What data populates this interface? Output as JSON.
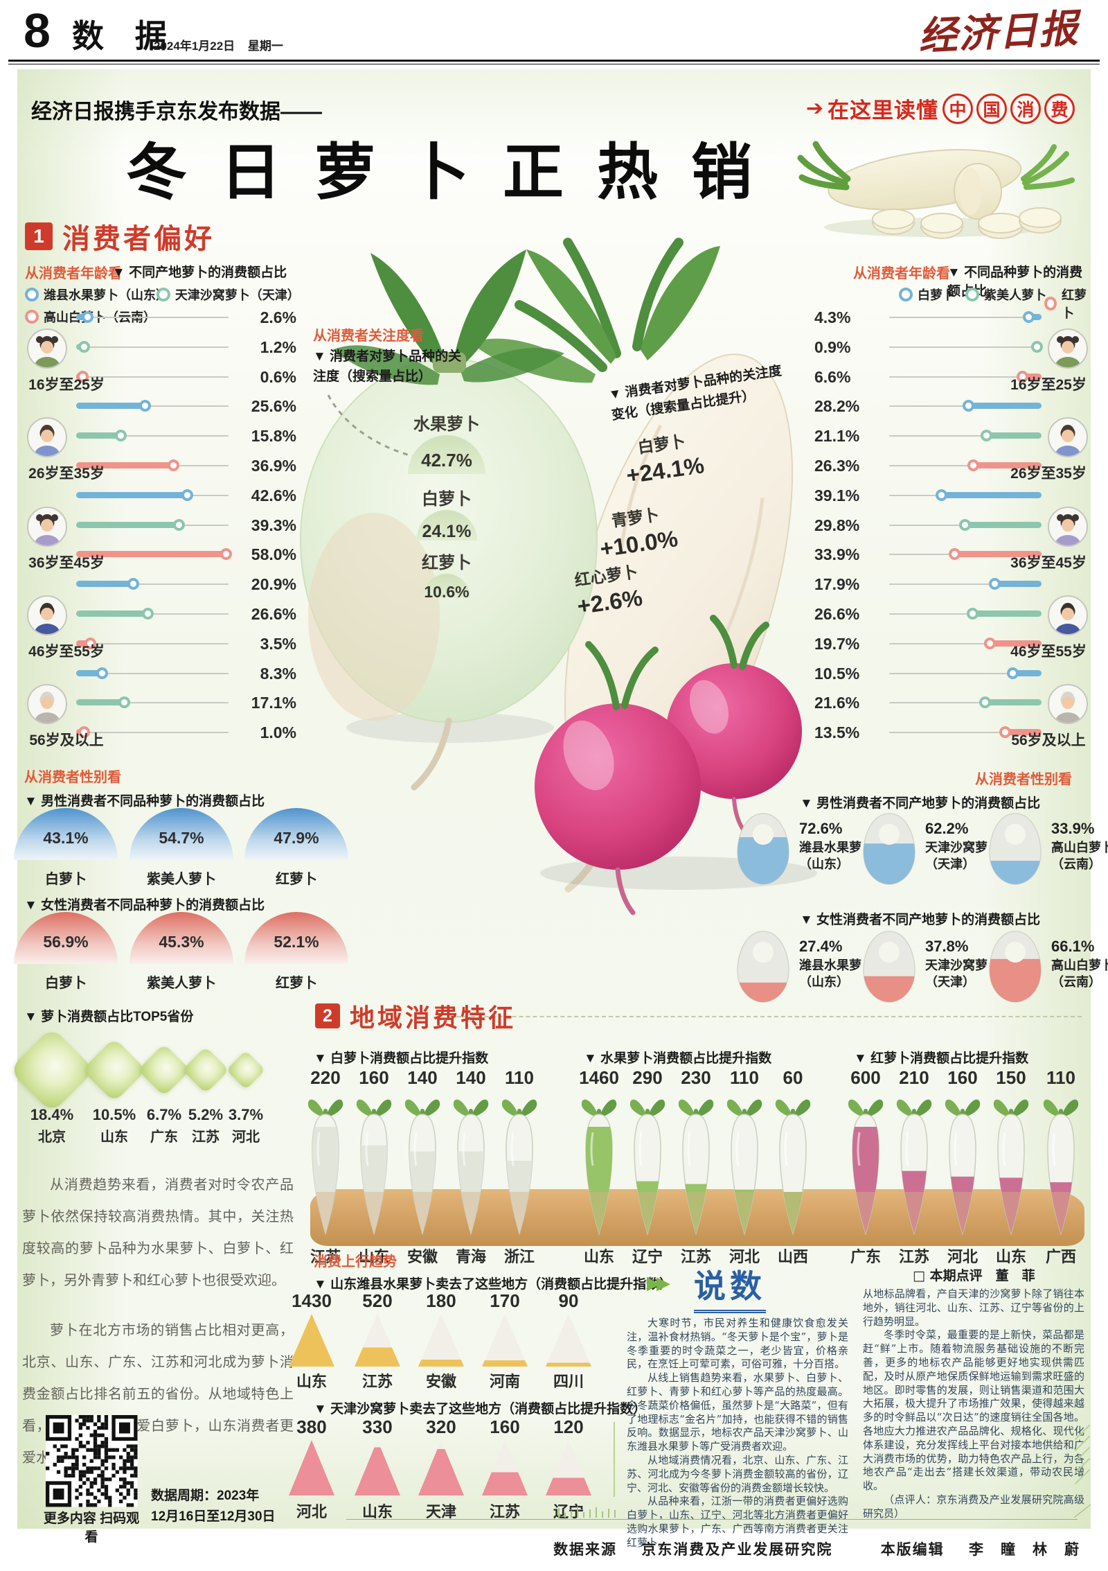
{
  "header": {
    "page_number": "8",
    "section_name": "数 据",
    "date": "2024年1月22日",
    "weekday": "星期一",
    "masthead": "经济日报"
  },
  "intro": {
    "kicker": "经济日报携手京东发布数据——",
    "title": "冬日萝卜正热销",
    "badge_text": "在这里读懂",
    "badge_circles": [
      "中",
      "国",
      "消",
      "费"
    ],
    "accent_red": "#d5281e"
  },
  "sections": {
    "s1_num": "1",
    "s1_title": "消费者偏好",
    "s2_num": "2",
    "s2_title": "地域消费特征"
  },
  "labels": {
    "age_view": "从消费者年龄看",
    "gender_view": "从消费者性别看",
    "attention_view": "从消费者关注度看",
    "uptrend": "消费上行趋势",
    "shuoshu_title": "说数",
    "byline": "□ 本期点评　董　菲"
  },
  "icons": {
    "badge_arrow": "➔",
    "play_arrows": "▶▶"
  },
  "chart_data": [
    {
      "id": "age_origin",
      "type": "bar",
      "view_label": "从消费者年龄看",
      "title": "▼ 不同产地萝卜的消费额占比",
      "unit": "%",
      "categories": [
        "16岁至25岁",
        "26岁至35岁",
        "36岁至45岁",
        "46岁至55岁",
        "56岁及以上"
      ],
      "series": [
        {
          "name": "潍县水果萝卜（山东）",
          "color": "#74b3d8",
          "values": [
            2.6,
            25.6,
            42.6,
            20.9,
            8.3
          ]
        },
        {
          "name": "天津沙窝萝卜（天津）",
          "color": "#8cc6ad",
          "values": [
            1.2,
            15.8,
            39.3,
            26.6,
            17.1
          ]
        },
        {
          "name": "高山白萝卜（云南）",
          "color": "#f0938a",
          "values": [
            0.6,
            36.9,
            58.0,
            3.5,
            1.0
          ]
        }
      ]
    },
    {
      "id": "age_variety",
      "type": "bar",
      "view_label": "从消费者年龄看",
      "title": "▼ 不同品种萝卜的消费额占比",
      "unit": "%",
      "categories": [
        "16岁至25岁",
        "26岁至35岁",
        "36岁至45岁",
        "46岁至55岁",
        "56岁及以上"
      ],
      "series": [
        {
          "name": "白萝卜",
          "color": "#74b3d8",
          "values": [
            4.3,
            28.2,
            39.1,
            17.9,
            10.5
          ]
        },
        {
          "name": "紫美人萝卜",
          "color": "#8cc6ad",
          "values": [
            0.9,
            21.1,
            29.8,
            26.6,
            21.6
          ]
        },
        {
          "name": "红萝卜",
          "color": "#f0938a",
          "values": [
            6.6,
            26.3,
            33.9,
            19.7,
            13.5
          ]
        }
      ]
    },
    {
      "id": "attention_share",
      "type": "pie",
      "view_label": "从消费者关注度看",
      "title": "▼ 消费者对萝卜品种的关注度（搜索量占比）",
      "categories": [
        "水果萝卜",
        "白萝卜",
        "红萝卜"
      ],
      "values": [
        42.7,
        24.1,
        10.6
      ],
      "display": [
        "42.7%",
        "24.1%",
        "10.6%"
      ]
    },
    {
      "id": "attention_change",
      "type": "bar",
      "title": "▼ 消费者对萝卜品种的关注度变化（搜索量占比提升）",
      "categories": [
        "白萝卜",
        "青萝卜",
        "红心萝卜"
      ],
      "values": [
        24.1,
        10.0,
        2.6
      ],
      "display": [
        "+24.1%",
        "+10.0%",
        "+2.6%"
      ]
    },
    {
      "id": "gender_variety",
      "type": "bar",
      "view_label": "从消费者性别看",
      "male_title": "▼ 男性消费者不同品种萝卜的消费额占比",
      "female_title": "▼ 女性消费者不同品种萝卜的消费额占比",
      "categories": [
        "白萝卜",
        "紫美人萝卜",
        "红萝卜"
      ],
      "unit": "%",
      "series": [
        {
          "name": "男性",
          "color": "#5a98cb",
          "values": [
            43.1,
            54.7,
            47.9
          ]
        },
        {
          "name": "女性",
          "color": "#dd6f63",
          "values": [
            56.9,
            45.3,
            52.1
          ]
        }
      ]
    },
    {
      "id": "gender_origin",
      "type": "bar",
      "view_label": "从消费者性别看",
      "male_title": "▼ 男性消费者不同产地萝卜的消费额占比",
      "female_title": "▼ 女性消费者不同产地萝卜的消费额占比",
      "categories": [
        "潍县水果萝卜",
        "天津沙窝萝卜",
        "高山白萝卜"
      ],
      "origins": [
        "（山东）",
        "（天津）",
        "（云南）"
      ],
      "unit": "%",
      "series": [
        {
          "name": "男性",
          "color": "#8cbcdc",
          "values": [
            72.6,
            62.2,
            33.9
          ]
        },
        {
          "name": "女性",
          "color": "#e88f86",
          "values": [
            27.4,
            37.8,
            66.1
          ]
        }
      ]
    },
    {
      "id": "top5",
      "type": "bar",
      "title": "▼ 萝卜消费额占比TOP5省份",
      "categories": [
        "北京",
        "山东",
        "广东",
        "江苏",
        "河北"
      ],
      "values": [
        18.4,
        10.5,
        6.7,
        5.2,
        3.7
      ],
      "display": [
        "18.4%",
        "10.5%",
        "6.7%",
        "5.2%",
        "3.7%"
      ],
      "color": "#c0d87e"
    },
    {
      "id": "white_idx",
      "type": "bar",
      "title": "▼ 白萝卜消费额占比提升指数",
      "categories": [
        "江苏",
        "山东",
        "安徽",
        "青海",
        "浙江"
      ],
      "values": [
        220,
        160,
        140,
        140,
        110
      ],
      "fill": "#dfe3d8"
    },
    {
      "id": "fruit_idx",
      "type": "bar",
      "title": "▼ 水果萝卜消费额占比提升指数",
      "categories": [
        "山东",
        "辽宁",
        "江苏",
        "河北",
        "山西"
      ],
      "values": [
        1460,
        290,
        230,
        110,
        60
      ],
      "fill": "#8fbf5a"
    },
    {
      "id": "red_idx",
      "type": "bar",
      "title": "▼ 红萝卜消费额占比提升指数",
      "categories": [
        "广东",
        "江苏",
        "河北",
        "山东",
        "广西"
      ],
      "values": [
        600,
        210,
        160,
        150,
        110
      ],
      "fill": "#c9648b"
    },
    {
      "id": "weixian_dest",
      "type": "bar",
      "title": "▼ 山东潍县水果萝卜卖去了这些地方（消费额占比提升指数）",
      "categories": [
        "山东",
        "江苏",
        "安徽",
        "河南",
        "四川"
      ],
      "values": [
        1430,
        520,
        180,
        170,
        90
      ],
      "fill": "#eec25a"
    },
    {
      "id": "shawo_dest",
      "type": "bar",
      "title": "▼ 天津沙窝萝卜卖去了这些地方（消费额占比提升指数）",
      "categories": [
        "河北",
        "山东",
        "天津",
        "江苏",
        "辽宁"
      ],
      "values": [
        380,
        330,
        320,
        160,
        120
      ],
      "fill": "#ec8f98"
    }
  ],
  "paragraphs_left": [
    "从消费趋势来看，消费者对时令农产品萝卜依然保持较高消费热情。其中，关注热度较高的萝卜品种为水果萝卜、白萝卜、红萝卜，另外青萝卜和红心萝卜也很受欢迎。",
    "萝卜在北方市场的销售占比相对更高，北京、山东、广东、江苏和河北成为萝卜消费金额占比排名前五的省份。从地域特色上看，江苏消费者偏爱白萝卜，山东消费者更爱水果萝卜。"
  ],
  "commentary": {
    "col1": [
      "大寒时节，市民对养生和健康饮食愈发关注，温补食材热销。“冬天萝卜是个宝”，萝卜是冬季重要的时令蔬菜之一，老少皆宜，价格亲民，在烹饪上可荤可素，可俗可雅，十分百搭。",
      "从线上销售趋势来看，水果萝卜、白萝卜、红萝卜、青萝卜和红心萝卜等产品的热度最高。今冬蔬菜价格偏低，虽然萝卜是“大路菜”，但有了地理标志“金名片”加持，也能获得不错的销售反响。数据显示，地标农产品天津沙窝萝卜、山东潍县水果萝卜等广受消费者欢迎。",
      "从地域消费情况看，北京、山东、广东、江苏、河北成为今冬萝卜消费金额较高的省份，辽宁、河北、安徽等省份的消费金额增长较快。",
      "从品种来看，江浙一带的消费者更偏好选购白萝卜，山东、辽宁、河北等北方消费者更偏好选购水果萝卜，广东、广西等南方消费者更关注红萝卜。"
    ],
    "col2": [
      "从地标品牌看，产自天津的沙窝萝卜除了销往本地外，销往河北、山东、江苏、辽宁等省份的上行趋势明显。",
      "冬季时令菜，最重要的是上新快，菜品都是赶“鲜”上市。随着物流服务基础设施的不断完善，更多的地标农产品能够更好地实现供需匹配，及时从原产地保质保鲜地运输到需求旺盛的地区。即时零售的发展，则让销售渠道和范围大大拓展，极大提升了市场推广效果，使得越来越多的时令鲜品以“次日达”的速度销往全国各地。各地应大力推进农产品品牌化、规格化、现代化体系建设，充分发挥线上平台对接本地供给和广大消费市场的优势，助力特色农产品上行，为各地农产品“走出去”搭建长效渠道，带动农民增收。",
      "（点评人：京东消费及产业发展研究院高级研究员）"
    ]
  },
  "qr": {
    "caption": "更多内容 扫码观看",
    "period_line1": "数据周期：2023年",
    "period_line2": "12月16日至12月30日"
  },
  "footer": {
    "source_label": "数据来源",
    "source": "京东消费及产业发展研究院",
    "editor_label": "本版编辑",
    "editors": "李　瞳　林　蔚"
  }
}
